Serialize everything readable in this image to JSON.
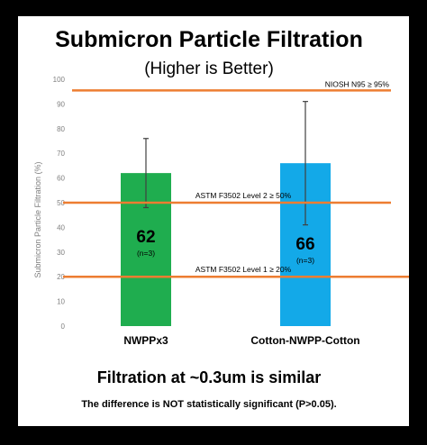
{
  "colors": {
    "background": "#000000",
    "panel": "#ffffff",
    "bar_nwpp": "#1fad4f",
    "bar_cotton": "#13a9e8",
    "reference_line": "#ed7d31",
    "error_bar": "#404040",
    "text": "#000000",
    "axis_text": "#7f7f7f"
  },
  "chart_data": {
    "type": "bar",
    "title": "Submicron Particle Filtration",
    "subtitle": "(Higher is Better)",
    "ylabel": "Submicron Particle Filtration (%)",
    "xlabel": "",
    "ylim": [
      0,
      100
    ],
    "yticks": [
      "0",
      "10",
      "20",
      "30",
      "40",
      "50",
      "60",
      "70",
      "80",
      "90",
      "100"
    ],
    "grid": false,
    "categories": [
      "NWPPx3",
      "Cotton-NWPP-Cotton"
    ],
    "values": [
      62,
      66
    ],
    "error_low": [
      48,
      41
    ],
    "error_high": [
      76,
      91
    ],
    "value_labels": [
      "62",
      "66"
    ],
    "n_labels": [
      "(n=3)",
      "(n=3)"
    ],
    "reference_lines": [
      {
        "label": "NIOSH N95 ≥ 95%",
        "value": 95.5
      },
      {
        "label": "ASTM F3502 Level 2 ≥ 50%",
        "value": 50
      },
      {
        "label": "ASTM F3502 Level 1 ≥ 20%",
        "value": 20
      }
    ],
    "annotations": [
      "Filtration at ~0.3um is similar",
      "The difference is NOT statistically significant (P>0.05)."
    ]
  }
}
